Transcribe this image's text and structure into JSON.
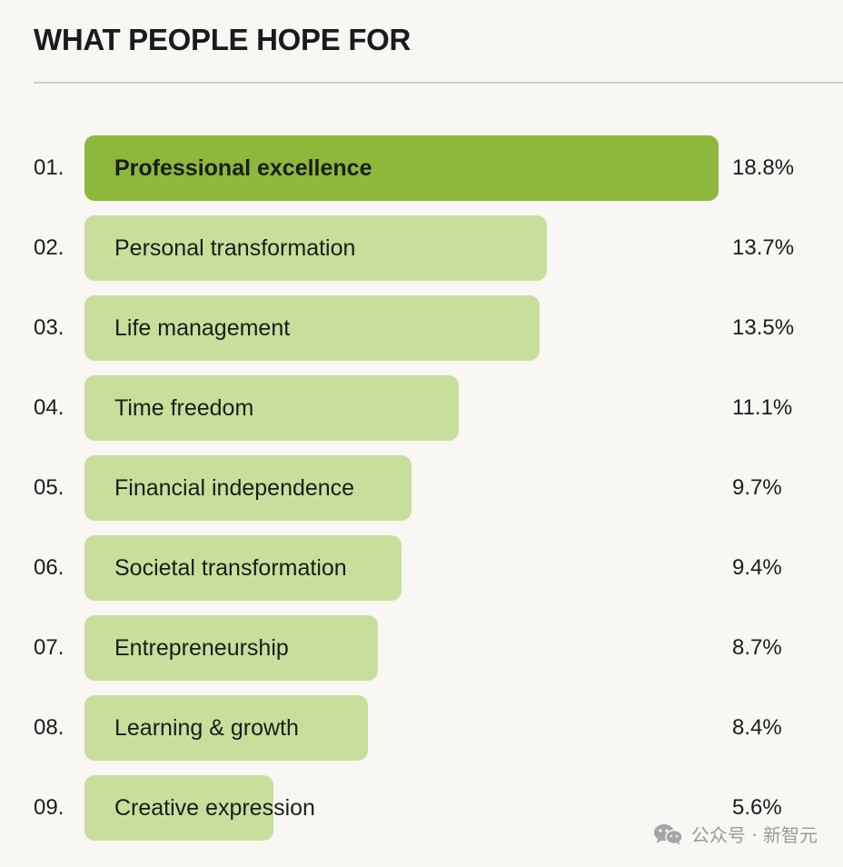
{
  "title": "WHAT PEOPLE HOPE FOR",
  "watermark": {
    "text": "公众号 · 新智元",
    "icon": "wechat-icon"
  },
  "colors": {
    "top_bar": "#8cb83b",
    "bar": "#c8df9c",
    "background": "#f8f7f3"
  },
  "chart_data": {
    "type": "bar",
    "orientation": "horizontal",
    "title": "WHAT PEOPLE HOPE FOR",
    "unit": "%",
    "xlim": [
      0,
      18.8
    ],
    "ranks": [
      "01.",
      "02.",
      "03.",
      "04.",
      "05.",
      "06.",
      "07.",
      "08.",
      "09."
    ],
    "categories": [
      "Professional excellence",
      "Personal transformation",
      "Life management",
      "Time freedom",
      "Financial independence",
      "Societal transformation",
      "Entrepreneurship",
      "Learning & growth",
      "Creative expression"
    ],
    "values": [
      18.8,
      13.7,
      13.5,
      11.1,
      9.7,
      9.4,
      8.7,
      8.4,
      5.6
    ],
    "value_labels": [
      "18.8%",
      "13.7%",
      "13.5%",
      "11.1%",
      "9.7%",
      "9.4%",
      "8.7%",
      "8.4%",
      "5.6%"
    ],
    "highlighted_index": 0
  }
}
